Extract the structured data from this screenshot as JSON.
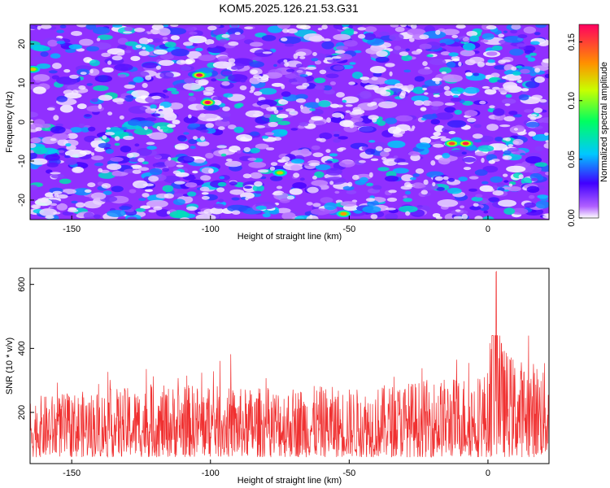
{
  "title": "KOM5.2025.126.21.53.G31",
  "chart_data": [
    {
      "type": "heatmap",
      "xlabel": "Height of straight line (km)",
      "ylabel": "Frequency (Hz)",
      "xlim": [
        -165,
        22
      ],
      "ylim": [
        -25,
        25
      ],
      "x_ticks": [
        -150,
        -100,
        -50,
        0
      ],
      "y_ticks": [
        -20,
        -10,
        0,
        10,
        20
      ],
      "colorbar": {
        "label": "Normalized spectral amplitude",
        "range": [
          0,
          0.165
        ],
        "ticks": [
          0.0,
          0.05,
          0.1,
          0.15
        ],
        "tick_labels": [
          "0.00",
          "0.05",
          "0.10",
          "0.15"
        ]
      },
      "grid": false,
      "hotspots": [
        {
          "x": -101,
          "y": 5,
          "amp": 0.165
        },
        {
          "x": -104,
          "y": 12,
          "amp": 0.165
        },
        {
          "x": -13,
          "y": -5.5,
          "amp": 0.15
        },
        {
          "x": -8,
          "y": -5.5,
          "amp": 0.16
        },
        {
          "x": -164,
          "y": 13.5,
          "amp": 0.12
        },
        {
          "x": -75,
          "y": -13,
          "amp": 0.12
        },
        {
          "x": -52,
          "y": -23.5,
          "amp": 0.13
        }
      ]
    },
    {
      "type": "line",
      "xlabel": "Height of straight line (km)",
      "ylabel": "SNR (10 * v/v)",
      "xlim": [
        -165,
        22
      ],
      "ylim": [
        40,
        650
      ],
      "x_ticks": [
        -150,
        -100,
        -50,
        0
      ],
      "y_ticks": [
        200,
        400,
        600
      ],
      "color": "#f03030",
      "grid": false,
      "series": [
        {
          "x": [
            -165,
            -150,
            -135,
            -120,
            -105,
            -90,
            -75,
            -60,
            -45,
            -30,
            -15,
            0,
            3,
            5,
            10,
            15,
            22
          ],
          "values": [
            140,
            150,
            160,
            165,
            170,
            160,
            165,
            165,
            160,
            175,
            185,
            200,
            650,
            260,
            230,
            225,
            220
          ]
        }
      ]
    }
  ]
}
